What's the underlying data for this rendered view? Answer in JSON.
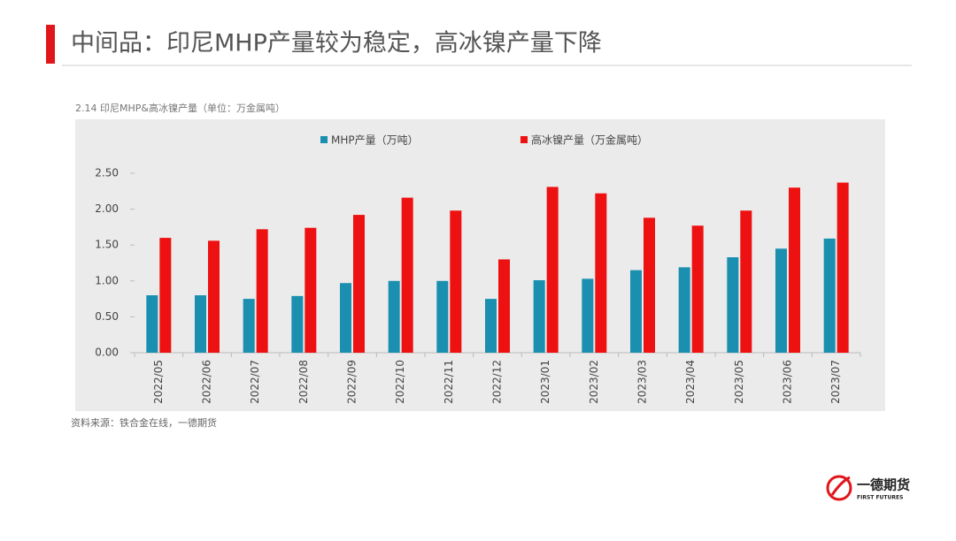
{
  "header": {
    "title": "中间品：印尼MHP产量较为稳定，高冰镍产量下降"
  },
  "chart_data": {
    "type": "bar",
    "title": "2.14 印尼MHP&高冰镍产量（单位：万金属吨）",
    "categories": [
      "2022/05",
      "2022/06",
      "2022/07",
      "2022/08",
      "2022/09",
      "2022/10",
      "2022/11",
      "2022/12",
      "2023/01",
      "2023/02",
      "2023/03",
      "2023/04",
      "2023/05",
      "2023/06",
      "2023/07"
    ],
    "series": [
      {
        "name": "MHP产量（万吨）",
        "color": "#1a8fb0",
        "values": [
          0.8,
          0.8,
          0.75,
          0.79,
          0.97,
          1.0,
          1.0,
          0.75,
          1.01,
          1.03,
          1.15,
          1.19,
          1.33,
          1.45,
          1.59
        ]
      },
      {
        "name": "高冰镍产量（万金属吨）",
        "color": "#ee1111",
        "values": [
          1.6,
          1.56,
          1.72,
          1.74,
          1.92,
          2.16,
          1.98,
          1.3,
          2.31,
          2.22,
          1.88,
          1.77,
          1.98,
          2.3,
          2.37
        ]
      }
    ],
    "ylim": [
      0,
      2.5
    ],
    "yticks": [
      {
        "value": 0,
        "label": "0.00"
      },
      {
        "value": 0.5,
        "label": "0.50"
      },
      {
        "value": 1,
        "label": "1.00"
      },
      {
        "value": 1.5,
        "label": "1.50"
      },
      {
        "value": 2,
        "label": "2.00"
      },
      {
        "value": 2.5,
        "label": "2.50"
      }
    ],
    "grid": false,
    "legend": "top",
    "source": "资料来源：铁合金在线，一德期货"
  },
  "logo": {
    "name": "一德期货",
    "subtitle": "FIRST FUTURES"
  }
}
